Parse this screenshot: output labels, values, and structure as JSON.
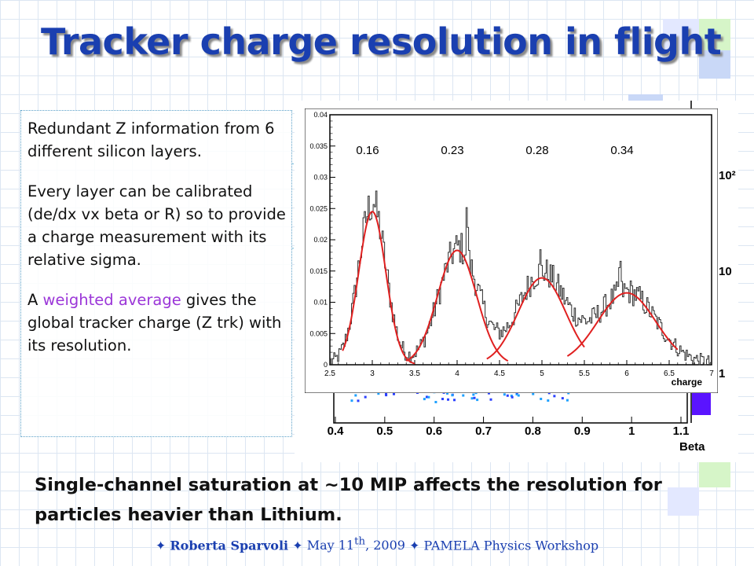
{
  "slide": {
    "title": "Tracker charge resolution in flight",
    "paragraph1": "Redundant Z information from 6 different silicon layers.",
    "paragraph2": "Every layer can be calibrated (de/dx vx beta or R) so to provide a charge measurement with its relative sigma.",
    "paragraph3_pre": "A ",
    "paragraph3_highlight": "weighted average",
    "paragraph3_post": " gives the global tracker charge  (Z trk) with its resolution.",
    "bottom_line1": "Single-channel saturation at ~10 MIP affects the resolution for",
    "bottom_line2": "particles heavier than Lithium.",
    "footer_star": "✦",
    "footer_author": "Roberta Sparvoli",
    "footer_date_pre": "May 11",
    "footer_date_sup": "th",
    "footer_date_post": ", 2009",
    "footer_event": "PAMELA Physics Workshop"
  },
  "colors": {
    "title": "#1a3fb0",
    "highlight": "#9b36d8",
    "fit_curve": "#e02020",
    "histogram": "#303030",
    "footer": "#1a3fb0"
  },
  "chart_data": [
    {
      "type": "line",
      "title": "",
      "xlabel": "charge",
      "ylabel": "",
      "xlim": [
        2.5,
        7
      ],
      "ylim": [
        0,
        0.04
      ],
      "x_ticks": [
        "2.5",
        "3",
        "3.5",
        "4",
        "4.5",
        "5",
        "5.5",
        "6",
        "6.5",
        "7"
      ],
      "y_ticks": [
        "0",
        "0.005",
        "0.01",
        "0.015",
        "0.02",
        "0.025",
        "0.03",
        "0.035",
        "0.04"
      ],
      "annotations": [
        "0.16",
        "0.23",
        "0.28",
        "0.34"
      ],
      "series": [
        {
          "style": "histogram",
          "peaks": [
            {
              "mean": 3.0,
              "sigma": 0.16,
              "amplitude": 0.0255
            },
            {
              "mean": 4.02,
              "sigma": 0.23,
              "amplitude": 0.0185
            },
            {
              "mean": 5.0,
              "sigma": 0.28,
              "amplitude": 0.0145
            },
            {
              "mean": 6.0,
              "sigma": 0.34,
              "amplitude": 0.0115
            }
          ],
          "spikes": [
            [
              3.02,
              0.0265
            ],
            [
              4.12,
              0.0232
            ],
            [
              4.98,
              0.0173
            ],
            [
              5.92,
              0.0157
            ]
          ]
        },
        {
          "style": "fit",
          "gaussians": [
            {
              "mean": 3.0,
              "sigma": 0.16,
              "amplitude": 0.0245,
              "range": [
                2.65,
                3.5
              ]
            },
            {
              "mean": 4.0,
              "sigma": 0.23,
              "amplitude": 0.0183,
              "range": [
                3.4,
                4.6
              ]
            },
            {
              "mean": 5.0,
              "sigma": 0.28,
              "amplitude": 0.0139,
              "range": [
                4.35,
                5.5
              ]
            },
            {
              "mean": 6.0,
              "sigma": 0.34,
              "amplitude": 0.0115,
              "range": [
                5.3,
                6.6
              ]
            }
          ]
        }
      ]
    },
    {
      "type": "heatmap",
      "title": "",
      "xlabel": "Beta",
      "ylabel": "",
      "xlim": [
        0.4,
        1.1
      ],
      "x_ticks": [
        "0.4",
        "0.5",
        "0.6",
        "0.7",
        "0.8",
        "0.9",
        "1",
        "1.1"
      ],
      "z_ticks": [
        "10²",
        "10",
        "1"
      ]
    }
  ]
}
